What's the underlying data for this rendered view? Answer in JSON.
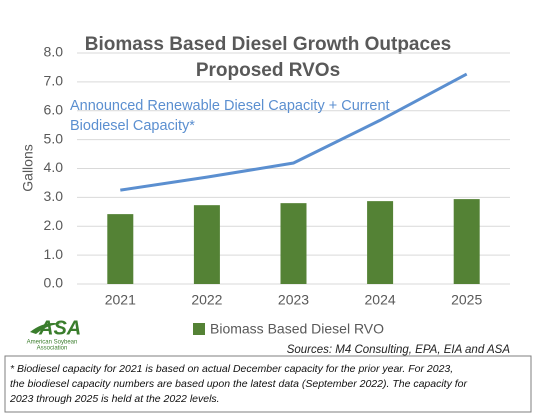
{
  "chart_data": {
    "type": "bar",
    "title": [
      "Biomass Based Diesel Growth Outpaces",
      "Proposed RVOs"
    ],
    "y_label": "Gallons",
    "annotation": [
      "Announced Renewable Diesel Capacity + Current",
      "Biodiesel Capacity*"
    ],
    "categories": [
      "2021",
      "2022",
      "2023",
      "2024",
      "2025"
    ],
    "series": [
      {
        "name": "Biomass Based Diesel RVO",
        "type": "bar",
        "color": "#548235",
        "values": [
          2.42,
          2.73,
          2.8,
          2.87,
          2.94
        ]
      },
      {
        "type": "line",
        "color": "#5b8fd0",
        "values": [
          3.25,
          3.7,
          4.19,
          5.67,
          7.27
        ]
      }
    ],
    "ylim": [
      0,
      8
    ],
    "yticks": [
      {
        "value": 0,
        "label": "0.0"
      },
      {
        "value": 1,
        "label": "1.0"
      },
      {
        "value": 2,
        "label": "2.0"
      },
      {
        "value": 3,
        "label": "3.0"
      },
      {
        "value": 4,
        "label": "4.0"
      },
      {
        "value": 5,
        "label": "5.0"
      },
      {
        "value": 6,
        "label": "6.0"
      },
      {
        "value": 7,
        "label": "7.0"
      },
      {
        "value": 8,
        "label": "8.0"
      }
    ],
    "grid": true,
    "source": "Sources: M4 Consulting, EPA, EIA and ASA",
    "logo": {
      "text": "ASA",
      "subtext": [
        "American Soybean",
        "Association"
      ]
    },
    "footnote": [
      "* Biodiesel capacity for 2021 is based on actual December capacity for the prior year. For 2023,",
      "the biodiesel capacity numbers are based upon the latest data (September 2022). The capacity for",
      "2023 through 2025 is held at the 2022 levels."
    ]
  }
}
